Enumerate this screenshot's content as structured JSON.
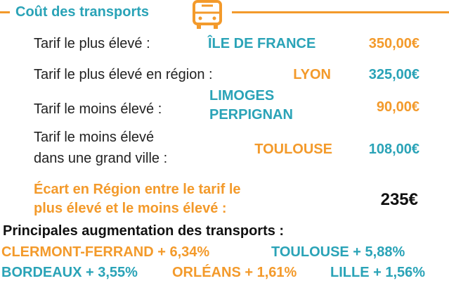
{
  "header": {
    "title": "Coût des transports"
  },
  "rows": [
    {
      "label": [
        "Tarif le plus élevé :"
      ],
      "city": [
        "ÎLE DE FRANCE"
      ],
      "price": "350,00€"
    },
    {
      "label": [
        "Tarif le plus élevé en région :"
      ],
      "city": [
        "LYON"
      ],
      "price": "325,00€"
    },
    {
      "label": [
        "Tarif le moins élevé :"
      ],
      "city": [
        "LIMOGES",
        "PERPIGNAN"
      ],
      "price": "90,00€"
    },
    {
      "label": [
        "Tarif le moins élevé",
        "dans une grand ville :"
      ],
      "city": [
        "TOULOUSE"
      ],
      "price": "108,00€"
    }
  ],
  "gap": {
    "label": [
      "Écart en Région entre le tarif le",
      "plus élevé et le moins élevé :"
    ],
    "value": "235€"
  },
  "increases": {
    "title": "Principales augmentation des transports :",
    "items": [
      "CLERMONT-FERRAND + 6,34%",
      "TOULOUSE + 5,88%",
      "BORDEAUX + 3,55%",
      "ORLÉANS + 1,61%",
      "LILLE + 1,56%"
    ]
  }
}
